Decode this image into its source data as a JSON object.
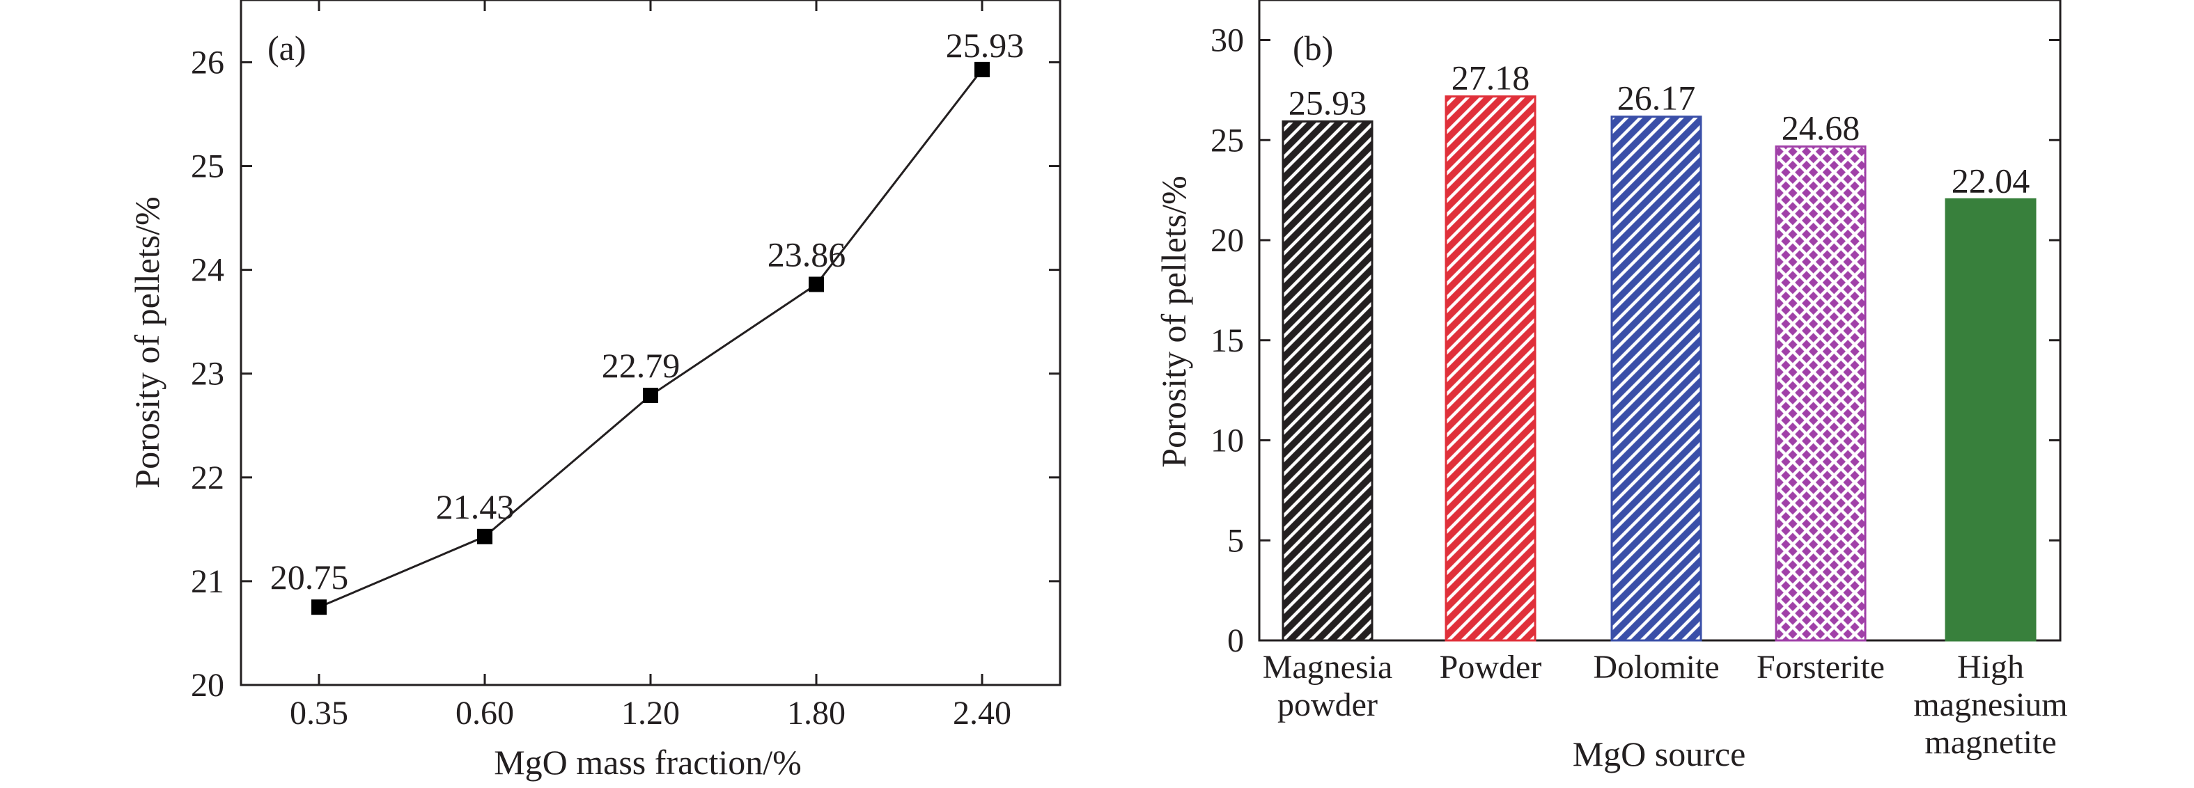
{
  "chart_data": [
    {
      "type": "line",
      "panel_label": "(a)",
      "x": [
        "0.35",
        "0.60",
        "1.20",
        "1.80",
        "2.40"
      ],
      "series": [
        {
          "values": [
            20.75,
            21.43,
            22.79,
            23.86,
            25.93
          ],
          "color": "#000000",
          "marker": "square"
        }
      ],
      "data_labels": [
        "20.75",
        "21.43",
        "22.79",
        "23.86",
        "25.93"
      ],
      "xlabel": "MgO mass fraction/%",
      "ylabel": "Porosity of pellets/%",
      "ylim": [
        20,
        26.6
      ],
      "yticks": [
        "20",
        "21",
        "22",
        "23",
        "24",
        "25",
        "26"
      ],
      "grid": false
    },
    {
      "type": "bar",
      "panel_label": "(b)",
      "categories": [
        [
          "Magnesia",
          "powder"
        ],
        [
          "Powder"
        ],
        [
          "Dolomite"
        ],
        [
          "Forsterite"
        ],
        [
          "High",
          "magnesium",
          "magnetite"
        ]
      ],
      "values": [
        25.93,
        27.18,
        26.17,
        24.68,
        22.04
      ],
      "data_labels": [
        "25.93",
        "27.18",
        "26.17",
        "24.68",
        "22.04"
      ],
      "colors": [
        "#231f20",
        "#e0303a",
        "#3a4fa8",
        "#a040a8",
        "#38803c"
      ],
      "patterns": [
        "diagonal-hatch",
        "diagonal-hatch",
        "diagonal-hatch",
        "crosshatch",
        "solid"
      ],
      "xlabel": "MgO source",
      "ylabel": "Porosity of pellets/%",
      "ylim": [
        0,
        32
      ],
      "yticks": [
        "0",
        "5",
        "10",
        "15",
        "20",
        "25",
        "30"
      ],
      "grid": false
    }
  ]
}
